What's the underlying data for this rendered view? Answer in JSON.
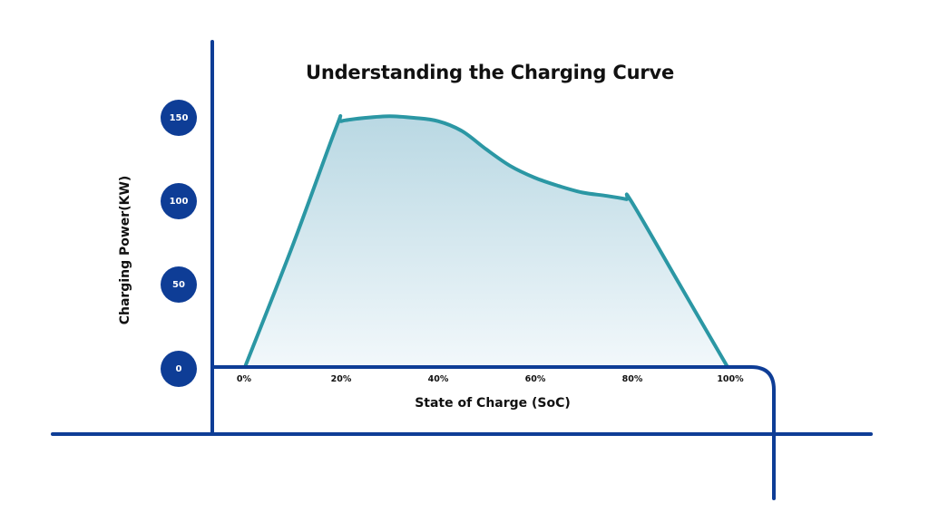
{
  "chart_data": {
    "type": "area",
    "title": "Understanding the Charging Curve",
    "xlabel": "State of Charge (SoC)",
    "ylabel": "Charging Power(KW)",
    "x_tick_labels": [
      "0%",
      "20%",
      "40%",
      "60%",
      "80%",
      "100%"
    ],
    "y_tick_labels": [
      "150",
      "100",
      "50",
      "0"
    ],
    "xlim": [
      0,
      100
    ],
    "ylim": [
      0,
      150
    ],
    "grid": false,
    "legend": null,
    "series": [
      {
        "name": "Charging Power",
        "x": [
          0,
          10,
          19,
          20,
          25,
          30,
          35,
          40,
          45,
          50,
          55,
          60,
          65,
          70,
          75,
          79,
          80,
          90,
          100
        ],
        "values": [
          0,
          74,
          145,
          148,
          150,
          151,
          150,
          148,
          142,
          131,
          121,
          114,
          109,
          105,
          103,
          101,
          100,
          50,
          0
        ],
        "line_color": "#2b97a4",
        "fill_top_color": "#b9d8e3",
        "fill_bottom_color": "#f2f8fb"
      }
    ],
    "annotations": []
  },
  "colors": {
    "axis": "#0e3d96",
    "tick_badge": "#0e3d96",
    "curve": "#2b97a4",
    "text": "#111111"
  }
}
